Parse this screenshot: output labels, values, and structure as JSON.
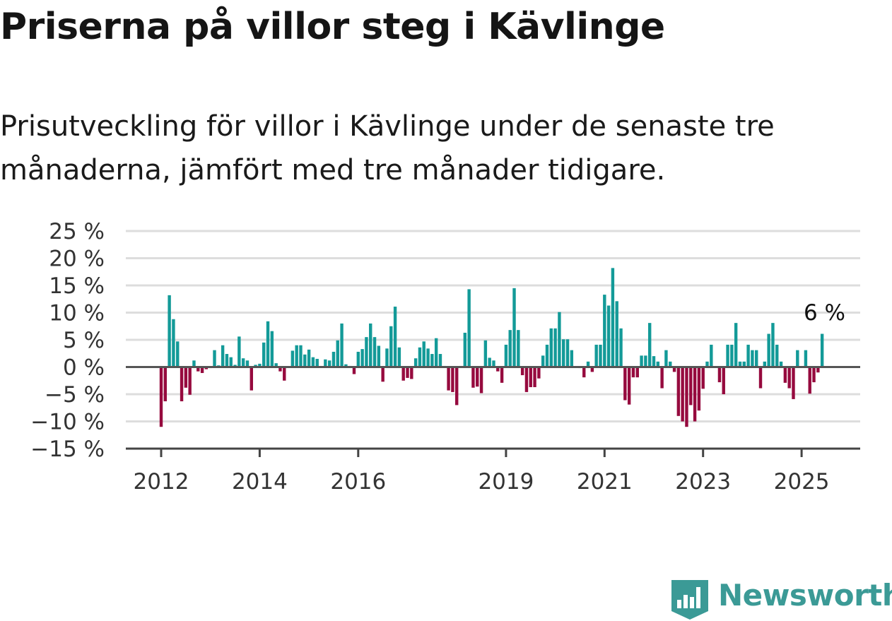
{
  "title": "Priserna på villor steg i Kävlinge",
  "subtitle": "Prisutveckling för villor i Kävlinge under de senaste tre månaderna, jämfört med tre månader tidigare.",
  "brand": "Newsworthy",
  "colors": {
    "positive": "#139a98",
    "negative": "#960a3e",
    "grid": "#dddddd",
    "axis": "#444444",
    "brand": "#3b9a96"
  },
  "chart_data": {
    "type": "bar",
    "title": "Priserna på villor steg i Kävlinge",
    "subtitle": "Prisutveckling för villor i Kävlinge under de senaste tre månaderna, jämfört med tre månader tidigare.",
    "ylim": [
      -15,
      25
    ],
    "yticks": [
      25,
      20,
      15,
      10,
      5,
      0,
      -5,
      -10,
      -15
    ],
    "ytick_labels": [
      "25 %",
      "20 %",
      "15 %",
      "10 %",
      "5 %",
      "0 %",
      "−5 %",
      "−10 %",
      "−15 %"
    ],
    "xtick_labels": [
      "2012",
      "2014",
      "2016",
      "2019",
      "2021",
      "2023",
      "2025"
    ],
    "x_start": "2012-01",
    "x_end": "2025-07",
    "grid": true,
    "last_value_label": "6 %",
    "values": [
      -11,
      -6.3,
      13.2,
      8.8,
      4.7,
      -6.3,
      -3.8,
      -5.1,
      1.2,
      -0.8,
      -1.1,
      -0.4,
      -0.2,
      3.1,
      0.3,
      4.0,
      2.4,
      1.8,
      0.4,
      5.6,
      1.6,
      1.2,
      -4.3,
      0.4,
      0.6,
      4.5,
      8.4,
      6.6,
      0.7,
      -0.8,
      -2.5,
      0.1,
      3.0,
      4.0,
      4.0,
      2.3,
      3.2,
      1.8,
      1.5,
      0.2,
      1.4,
      1.2,
      2.8,
      4.9,
      8.0,
      0.5,
      0.2,
      -1.3,
      2.8,
      3.3,
      5.5,
      8.0,
      5.5,
      3.9,
      -2.7,
      3.4,
      7.5,
      11.1,
      3.6,
      -2.5,
      -2.0,
      -2.2,
      1.6,
      3.6,
      4.7,
      3.4,
      2.4,
      5.3,
      2.4,
      0.2,
      -4.3,
      -4.6,
      -7.0,
      0.2,
      6.3,
      14.3,
      -3.8,
      -3.6,
      -4.8,
      4.9,
      1.7,
      1.2,
      -0.8,
      -2.9,
      4.1,
      6.8,
      14.5,
      6.8,
      -1.5,
      -4.6,
      -3.7,
      -3.7,
      -2.1,
      2.1,
      4.1,
      7.1,
      7.1,
      10.1,
      5.1,
      5.1,
      3.1,
      0.1,
      -0.2,
      -1.9,
      1.0,
      -0.9,
      4.1,
      4.1,
      13.3,
      11.3,
      18.2,
      12.1,
      7.1,
      -6.1,
      -6.9,
      -1.9,
      -1.9,
      2.1,
      2.1,
      8.1,
      2.0,
      1.0,
      -3.9,
      3.1,
      1.0,
      -0.9,
      -9.0,
      -10.0,
      -11.0,
      -7.0,
      -10.0,
      -8.0,
      -4.0,
      1.0,
      4.1,
      0.1,
      -2.8,
      -5.0,
      4.1,
      4.1,
      8.1,
      1.0,
      1.0,
      4.1,
      3.1,
      3.1,
      -3.9,
      1.0,
      6.1,
      8.1,
      4.1,
      1.0,
      -2.9,
      -3.9,
      -5.9,
      3.1,
      0.1,
      3.1,
      -4.9,
      -2.8,
      -1.0,
      6.1
    ]
  }
}
